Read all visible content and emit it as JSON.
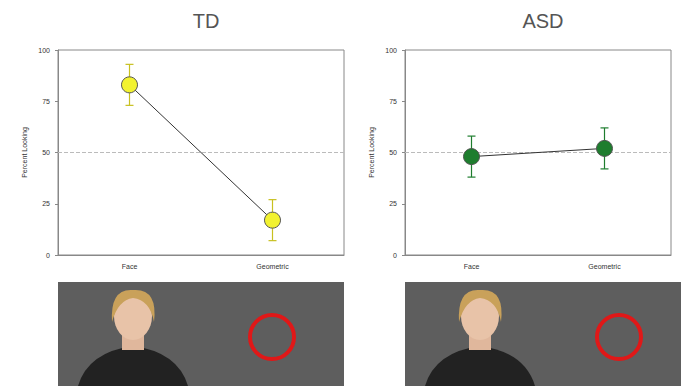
{
  "chart_data": [
    {
      "type": "line",
      "title": "TD",
      "categories": [
        "Face",
        "Geometric"
      ],
      "values": [
        83,
        17
      ],
      "error": [
        10,
        10
      ],
      "color": "#f2f230",
      "marker": "circle",
      "y_label": "Percent Looking",
      "ylim": [
        0,
        100
      ],
      "yticks": [
        0,
        25,
        50,
        75,
        100
      ],
      "reference_line": 50,
      "grid": false
    },
    {
      "type": "line",
      "title": "ASD",
      "categories": [
        "Face",
        "Geometric"
      ],
      "values": [
        48,
        52
      ],
      "error": [
        10,
        10
      ],
      "color": "#1e7d2e",
      "marker": "circle",
      "y_label": "Percent Looking",
      "ylim": [
        0,
        100
      ],
      "yticks": [
        0,
        25,
        50,
        75,
        100
      ],
      "reference_line": 50,
      "grid": false
    }
  ]
}
